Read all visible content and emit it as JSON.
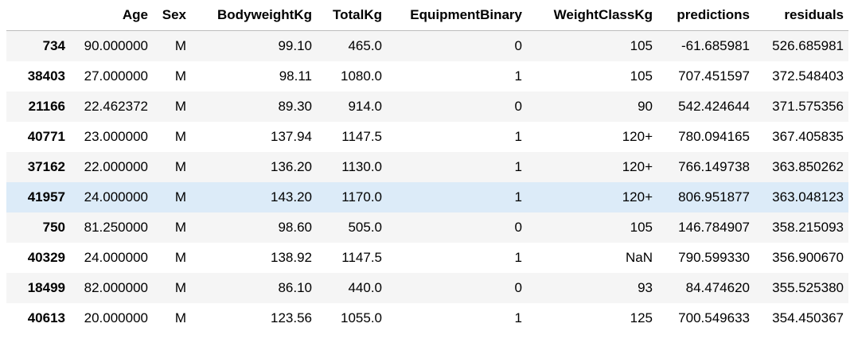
{
  "table": {
    "columns": [
      "",
      "Age",
      "Sex",
      "BodyweightKg",
      "TotalKg",
      "EquipmentBinary",
      "WeightClassKg",
      "predictions",
      "residuals"
    ],
    "rows": [
      {
        "index": "734",
        "age": "90.000000",
        "sex": "M",
        "bodyweight": "99.10",
        "total": "465.0",
        "equipment": "0",
        "weightclass": "105",
        "predictions": "-61.685981",
        "residuals": "526.685981"
      },
      {
        "index": "38403",
        "age": "27.000000",
        "sex": "M",
        "bodyweight": "98.11",
        "total": "1080.0",
        "equipment": "1",
        "weightclass": "105",
        "predictions": "707.451597",
        "residuals": "372.548403"
      },
      {
        "index": "21166",
        "age": "22.462372",
        "sex": "M",
        "bodyweight": "89.30",
        "total": "914.0",
        "equipment": "0",
        "weightclass": "90",
        "predictions": "542.424644",
        "residuals": "371.575356"
      },
      {
        "index": "40771",
        "age": "23.000000",
        "sex": "M",
        "bodyweight": "137.94",
        "total": "1147.5",
        "equipment": "1",
        "weightclass": "120+",
        "predictions": "780.094165",
        "residuals": "367.405835"
      },
      {
        "index": "37162",
        "age": "22.000000",
        "sex": "M",
        "bodyweight": "136.20",
        "total": "1130.0",
        "equipment": "1",
        "weightclass": "120+",
        "predictions": "766.149738",
        "residuals": "363.850262"
      },
      {
        "index": "41957",
        "age": "24.000000",
        "sex": "M",
        "bodyweight": "143.20",
        "total": "1170.0",
        "equipment": "1",
        "weightclass": "120+",
        "predictions": "806.951877",
        "residuals": "363.048123"
      },
      {
        "index": "750",
        "age": "81.250000",
        "sex": "M",
        "bodyweight": "98.60",
        "total": "505.0",
        "equipment": "0",
        "weightclass": "105",
        "predictions": "146.784907",
        "residuals": "358.215093"
      },
      {
        "index": "40329",
        "age": "24.000000",
        "sex": "M",
        "bodyweight": "138.92",
        "total": "1147.5",
        "equipment": "1",
        "weightclass": "NaN",
        "predictions": "790.599330",
        "residuals": "356.900670"
      },
      {
        "index": "18499",
        "age": "82.000000",
        "sex": "M",
        "bodyweight": "86.10",
        "total": "440.0",
        "equipment": "0",
        "weightclass": "93",
        "predictions": "84.474620",
        "residuals": "355.525380"
      },
      {
        "index": "40613",
        "age": "20.000000",
        "sex": "M",
        "bodyweight": "123.56",
        "total": "1055.0",
        "equipment": "1",
        "weightclass": "125",
        "predictions": "700.549633",
        "residuals": "354.450367"
      }
    ],
    "highlighted_row_index": "41957",
    "colors": {
      "stripe": "#f5f5f5",
      "hover": "#dcebf8",
      "header_rule": "#bdbdbd"
    }
  }
}
